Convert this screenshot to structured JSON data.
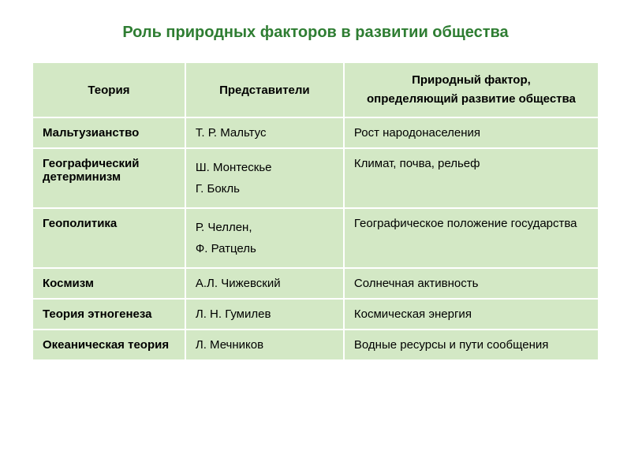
{
  "title": "Роль природных факторов в развитии общества",
  "table": {
    "headers": {
      "theory": "Теория",
      "representatives": "Представители",
      "factor_line1": "Природный фактор,",
      "factor_line2": "определяющий развитие общества"
    },
    "rows": [
      {
        "theory": "Мальтузианство",
        "reps": "Т. Р. Мальтус",
        "factor": "Рост народонаселения"
      },
      {
        "theory": "Географический детерминизм",
        "reps": "Ш. Монтескье\nГ. Бокль",
        "factor": "Климат, почва, рельеф"
      },
      {
        "theory": "Геополитика",
        "reps": "Р. Челлен,\n Ф. Ратцель",
        "factor": "Географическое положение государства"
      },
      {
        "theory": "Космизм",
        "reps": "А.Л. Чижевский",
        "factor": "Солнечная активность"
      },
      {
        "theory": "Теория этногенеза",
        "reps": "Л. Н. Гумилев",
        "factor": "Космическая энергия"
      },
      {
        "theory": "Океаническая теория",
        "reps": "Л. Мечников",
        "factor": "Водные ресурсы и пути сообщения"
      }
    ]
  },
  "style": {
    "title_color": "#2e7d32",
    "cell_bg": "#d3e8c5",
    "border_color": "#ffffff",
    "text_color": "#000000"
  }
}
